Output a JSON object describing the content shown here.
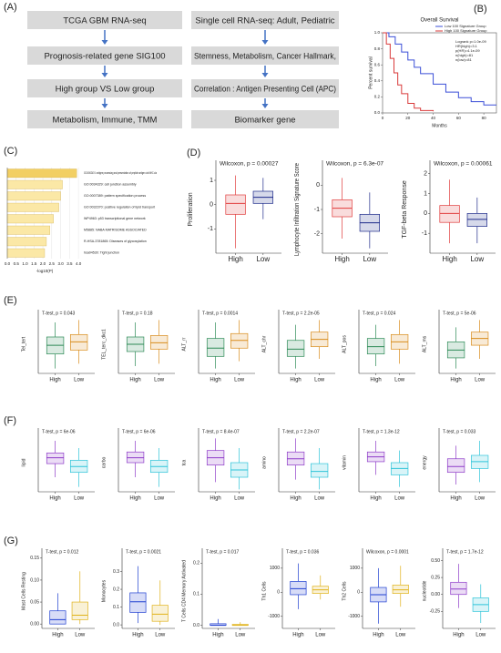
{
  "panel_labels": [
    "(A)",
    "(B)",
    "(C)",
    "(D)",
    "(E)",
    "(F)",
    "(G)"
  ],
  "flow": {
    "left": [
      "TCGA GBM RNA-seq",
      "Prognosis-related gene SIG100",
      "High group VS Low group",
      "Metabolism, Immune, TMM"
    ],
    "right": [
      "Single cell RNA-seq: Adult, Pediatric",
      "Stemness, Metabolism, Cancer Hallmark,",
      "Correlation : Antigen Presenting Cell (APC)",
      "Biomarker gene"
    ]
  },
  "km": {
    "type": "line",
    "title": "Overall Survival",
    "xlabel": "Months",
    "ylabel": "Percent survival",
    "stats": [
      "Logrank p=1.0e-09",
      "HR(high)=3.1",
      "p(HR)=4.1e-09",
      "n(high)=81",
      "n(low)=81"
    ],
    "xlim": [
      0,
      90
    ],
    "xticks": [
      0,
      20,
      40,
      60,
      80
    ],
    "ylim": [
      0,
      1
    ],
    "yticks": [
      {
        "value": 0,
        "label": "0.0"
      },
      {
        "value": 0.2,
        "label": "0.2"
      },
      {
        "value": 0.4,
        "label": "0.4"
      },
      {
        "value": 0.6,
        "label": "0.6"
      },
      {
        "value": 0.8,
        "label": "0.8"
      },
      {
        "value": 1,
        "label": "1.0"
      }
    ],
    "series": [
      {
        "name": "Low 100 Signature Group",
        "color": "#3b4fd8",
        "x": [
          0,
          5,
          10,
          15,
          20,
          25,
          30,
          40,
          50,
          60,
          70,
          80,
          90
        ],
        "values": [
          1,
          0.95,
          0.86,
          0.76,
          0.66,
          0.57,
          0.49,
          0.36,
          0.26,
          0.19,
          0.14,
          0.1,
          0.1
        ]
      },
      {
        "name": "High 100 Signature Group",
        "color": "#d93a3a",
        "x": [
          0,
          3,
          6,
          9,
          12,
          15,
          20,
          25,
          30,
          40
        ],
        "values": [
          1,
          0.86,
          0.68,
          0.5,
          0.35,
          0.24,
          0.12,
          0.06,
          0.03,
          0.02
        ]
      }
    ]
  },
  "enrichment": {
    "type": "bar",
    "xlabel": "-log10(P)",
    "categories": [
      "GO:0002474: antigen processing and presentation of peptide antigen via MHC cla",
      "GO:0034329: cell junction assembly",
      "GO:0007389: pattern specification process",
      "GO:0032370: positive regulation of lipid transport",
      "WP4963: p53 transcriptional gene network",
      "M5885: NABA MATRISOME ASSOCIATED",
      "R-HSA-3781865: Diseases of glycosylation",
      "hsa04530: Tight junction"
    ],
    "values": [
      3.9,
      3.1,
      3.0,
      2.9,
      2.6,
      2.4,
      2.2,
      2.1
    ],
    "colors": [
      "#f2cf63",
      "#fbe8a6",
      "#fbe8a6",
      "#fbe8a6",
      "#fbe8a6",
      "#fbe8a6",
      "#fbe8a6",
      "#fbe8a6"
    ],
    "xlim": [
      0,
      4.2
    ],
    "xticks": [
      {
        "value": 0,
        "label": "0.0"
      },
      {
        "value": 0.5,
        "label": "0.5"
      },
      {
        "value": 1,
        "label": "1.0"
      },
      {
        "value": 1.5,
        "label": "1.5"
      },
      {
        "value": 2,
        "label": "2.0"
      },
      {
        "value": 2.5,
        "label": "2.5"
      },
      {
        "value": 3,
        "label": "3.0"
      },
      {
        "value": 3.5,
        "label": "3.5"
      },
      {
        "value": 4,
        "label": "4.0"
      }
    ]
  },
  "groups": [
    "High",
    "Low"
  ],
  "box_panels": [
    {
      "type": "box",
      "plots": [
        {
          "title": "Wilcoxon, p = 0.00027",
          "ylabel": "Proliferation",
          "colors": [
            "#e03b3b",
            "#1d2a8a"
          ],
          "ylim": [
            -2,
            1.6
          ],
          "yticks": [
            -1,
            0,
            1
          ],
          "stats": [
            {
              "low": -1.8,
              "q1": -0.4,
              "median": 0.05,
              "q3": 0.4,
              "high": 1.2
            },
            {
              "low": -0.6,
              "q1": 0.05,
              "median": 0.3,
              "q3": 0.55,
              "high": 1.1
            }
          ]
        },
        {
          "title": "Wilcoxon, p = 6.3e-07",
          "ylabel": "Lymphocyte Infiltration Signature Score",
          "colors": [
            "#e03b3b",
            "#1d2a8a"
          ],
          "ylim": [
            -2.8,
            0.8
          ],
          "yticks": [
            -2,
            -1,
            0
          ],
          "stats": [
            {
              "low": -2.2,
              "q1": -1.3,
              "median": -0.95,
              "q3": -0.6,
              "high": 0.3
            },
            {
              "low": -2.6,
              "q1": -1.9,
              "median": -1.55,
              "q3": -1.2,
              "high": -0.3
            }
          ]
        },
        {
          "title": "Wilcoxon, p = 0.00061",
          "ylabel": "TGF-beta Response",
          "colors": [
            "#e03b3b",
            "#1d2a8a"
          ],
          "ylim": [
            -2,
            2.4
          ],
          "yticks": [
            -1,
            0,
            1,
            2
          ],
          "stats": [
            {
              "low": -1.5,
              "q1": -0.45,
              "median": 0,
              "q3": 0.4,
              "high": 1.7
            },
            {
              "low": -1.5,
              "q1": -0.65,
              "median": -0.3,
              "q3": 0,
              "high": 0.8
            }
          ]
        }
      ]
    },
    {
      "type": "box",
      "plots": [
        {
          "title": "T-test, p = 0.043",
          "ylabel": "Tel_tert",
          "colors": [
            "#2e8b57",
            "#d98c1c"
          ],
          "ylim": [
            -0.6,
            0.6
          ],
          "stats": [
            {
              "low": -0.5,
              "q1": -0.2,
              "median": -0.02,
              "q3": 0.15,
              "high": 0.45
            },
            {
              "low": -0.4,
              "q1": -0.12,
              "median": 0.05,
              "q3": 0.2,
              "high": 0.5
            }
          ]
        },
        {
          "title": "T-test, p = 0.18",
          "ylabel": "TEL_terc_dkc1",
          "colors": [
            "#2e8b57",
            "#d98c1c"
          ],
          "ylim": [
            -0.6,
            0.6
          ],
          "stats": [
            {
              "low": -0.45,
              "q1": -0.15,
              "median": 0,
              "q3": 0.15,
              "high": 0.45
            },
            {
              "low": -0.4,
              "q1": -0.1,
              "median": 0.03,
              "q3": 0.18,
              "high": 0.5
            }
          ]
        },
        {
          "title": "T-test, p = 0.0014",
          "ylabel": "ALT_rr",
          "colors": [
            "#2e8b57",
            "#d98c1c"
          ],
          "ylim": [
            -0.6,
            0.6
          ],
          "stats": [
            {
              "low": -0.5,
              "q1": -0.25,
              "median": -0.08,
              "q3": 0.12,
              "high": 0.45
            },
            {
              "low": -0.35,
              "q1": -0.08,
              "median": 0.08,
              "q3": 0.22,
              "high": 0.5
            }
          ]
        },
        {
          "title": "T-test, p = 2.2e-05",
          "ylabel": "ALT_chr",
          "colors": [
            "#2e8b57",
            "#d98c1c"
          ],
          "ylim": [
            -0.6,
            0.6
          ],
          "stats": [
            {
              "low": -0.5,
              "q1": -0.25,
              "median": -0.1,
              "q3": 0.08,
              "high": 0.4
            },
            {
              "low": -0.3,
              "q1": -0.05,
              "median": 0.1,
              "q3": 0.25,
              "high": 0.5
            }
          ]
        },
        {
          "title": "T-test, p = 0.024",
          "ylabel": "ALT_pos",
          "colors": [
            "#2e8b57",
            "#d98c1c"
          ],
          "ylim": [
            -0.6,
            0.6
          ],
          "stats": [
            {
              "low": -0.45,
              "q1": -0.2,
              "median": -0.05,
              "q3": 0.12,
              "high": 0.4
            },
            {
              "low": -0.4,
              "q1": -0.1,
              "median": 0.05,
              "q3": 0.2,
              "high": 0.5
            }
          ]
        },
        {
          "title": "T-test, p = 5e-06",
          "ylabel": "ALT_ms",
          "colors": [
            "#2e8b57",
            "#d98c1c"
          ],
          "ylim": [
            -0.6,
            0.6
          ],
          "stats": [
            {
              "low": -0.5,
              "q1": -0.28,
              "median": -0.12,
              "q3": 0.05,
              "high": 0.35
            },
            {
              "low": -0.3,
              "q1": -0.02,
              "median": 0.12,
              "q3": 0.25,
              "high": 0.5
            }
          ]
        }
      ]
    },
    {
      "type": "box",
      "plots": [
        {
          "title": "T-test, p = 6e-06",
          "ylabel": "lipid",
          "colors": [
            "#8e3bc9",
            "#2ec4d9"
          ],
          "ylim": [
            -0.6,
            0.6
          ],
          "stats": [
            {
              "low": -0.3,
              "q1": -0.02,
              "median": 0.1,
              "q3": 0.2,
              "high": 0.45
            },
            {
              "low": -0.5,
              "q1": -0.2,
              "median": -0.08,
              "q3": 0.05,
              "high": 0.3
            }
          ]
        },
        {
          "title": "T-test, p = 6e-06",
          "ylabel": "carbo",
          "colors": [
            "#8e3bc9",
            "#2ec4d9"
          ],
          "ylim": [
            -0.6,
            0.6
          ],
          "stats": [
            {
              "low": -0.3,
              "q1": 0,
              "median": 0.1,
              "q3": 0.22,
              "high": 0.45
            },
            {
              "low": -0.5,
              "q1": -0.2,
              "median": -0.08,
              "q3": 0.05,
              "high": 0.3
            }
          ]
        },
        {
          "title": "T-test, p = 8.4e-07",
          "ylabel": "tca",
          "colors": [
            "#8e3bc9",
            "#2ec4d9"
          ],
          "ylim": [
            -0.6,
            0.6
          ],
          "stats": [
            {
              "low": -0.4,
              "q1": -0.05,
              "median": 0.1,
              "q3": 0.25,
              "high": 0.5
            },
            {
              "low": -0.55,
              "q1": -0.3,
              "median": -0.15,
              "q3": 0,
              "high": 0.3
            }
          ]
        },
        {
          "title": "T-test, p = 2.2e-07",
          "ylabel": "amino",
          "colors": [
            "#8e3bc9",
            "#2ec4d9"
          ],
          "ylim": [
            -0.6,
            0.6
          ],
          "stats": [
            {
              "low": -0.35,
              "q1": -0.05,
              "median": 0.08,
              "q3": 0.22,
              "high": 0.5
            },
            {
              "low": -0.55,
              "q1": -0.3,
              "median": -0.18,
              "q3": -0.02,
              "high": 0.3
            }
          ]
        },
        {
          "title": "T-test, p = 1.3e-12",
          "ylabel": "vitamin",
          "colors": [
            "#8e3bc9",
            "#2ec4d9"
          ],
          "ylim": [
            -0.6,
            0.6
          ],
          "stats": [
            {
              "low": -0.25,
              "q1": 0.02,
              "median": 0.12,
              "q3": 0.22,
              "high": 0.45
            },
            {
              "low": -0.5,
              "q1": -0.25,
              "median": -0.12,
              "q3": 0,
              "high": 0.25
            }
          ]
        },
        {
          "title": "T-test, p = 0.033",
          "ylabel": "energy",
          "colors": [
            "#8e3bc9",
            "#2ec4d9"
          ],
          "ylim": [
            -0.6,
            0.6
          ],
          "stats": [
            {
              "low": -0.45,
              "q1": -0.2,
              "median": -0.08,
              "q3": 0.08,
              "high": 0.35
            },
            {
              "low": -0.4,
              "q1": -0.12,
              "median": 0.02,
              "q3": 0.15,
              "high": 0.45
            }
          ]
        }
      ]
    },
    {
      "type": "box",
      "plots": [
        {
          "title": "T-test, p = 0.012",
          "ylabel": "Mast Cells Resting",
          "colors": [
            "#1f3fd1",
            "#e0b31b"
          ],
          "ylim": [
            -0.01,
            0.16
          ],
          "yticks": [
            {
              "value": 0,
              "label": "0.00"
            },
            {
              "value": 0.05,
              "label": "0.05"
            },
            {
              "value": 0.1,
              "label": "0.10"
            },
            {
              "value": 0.15,
              "label": "0.15"
            }
          ],
          "stats": [
            {
              "low": 0,
              "q1": 0,
              "median": 0.01,
              "q3": 0.03,
              "high": 0.07
            },
            {
              "low": 0,
              "q1": 0.01,
              "median": 0.02,
              "q3": 0.05,
              "high": 0.12
            }
          ]
        },
        {
          "title": "T-test, p = 0.0021",
          "ylabel": "Monocytes",
          "colors": [
            "#1f3fd1",
            "#e0b31b"
          ],
          "ylim": [
            -0.02,
            0.4
          ],
          "yticks": [
            {
              "value": 0,
              "label": "0.0"
            },
            {
              "value": 0.1,
              "label": "0.1"
            },
            {
              "value": 0.2,
              "label": "0.2"
            },
            {
              "value": 0.3,
              "label": "0.3"
            }
          ],
          "stats": [
            {
              "low": 0.01,
              "q1": 0.07,
              "median": 0.13,
              "q3": 0.18,
              "high": 0.33
            },
            {
              "low": 0,
              "q1": 0.02,
              "median": 0.06,
              "q3": 0.11,
              "high": 0.25
            }
          ]
        },
        {
          "title": "T-test, p = 0.017",
          "ylabel": "T Cells CD4 Memory Activated",
          "colors": [
            "#1f3fd1",
            "#e0b31b"
          ],
          "ylim": [
            -0.01,
            0.23
          ],
          "yticks": [
            {
              "value": 0,
              "label": "0.0"
            },
            {
              "value": 0.1,
              "label": "0.1"
            },
            {
              "value": 0.2,
              "label": "0.2"
            }
          ],
          "stats": [
            {
              "low": 0,
              "q1": 0,
              "median": 0,
              "q3": 0.005,
              "high": 0.02
            },
            {
              "low": 0,
              "q1": 0,
              "median": 0,
              "q3": 0.003,
              "high": 0.01
            }
          ]
        },
        {
          "title": "T-test, p = 0.036",
          "ylabel": "Th1 Cells",
          "colors": [
            "#1f3fd1",
            "#e0b31b"
          ],
          "ylim": [
            -1500,
            1600
          ],
          "yticks": [
            -1000,
            0,
            1000
          ],
          "stats": [
            {
              "low": -700,
              "q1": -100,
              "median": 150,
              "q3": 450,
              "high": 1200
            },
            {
              "low": -300,
              "q1": -50,
              "median": 100,
              "q3": 250,
              "high": 700
            }
          ]
        },
        {
          "title": "Wilcoxon, p = 0.0001",
          "ylabel": "Th2 Cells",
          "colors": [
            "#1f3fd1",
            "#e0b31b"
          ],
          "ylim": [
            -1500,
            1600
          ],
          "yticks": [
            -1000,
            0,
            1000
          ],
          "stats": [
            {
              "low": -1300,
              "q1": -400,
              "median": -100,
              "q3": 200,
              "high": 1000
            },
            {
              "low": -600,
              "q1": -50,
              "median": 100,
              "q3": 300,
              "high": 1100
            }
          ]
        },
        {
          "title": "T-test, p = 1.7e-12",
          "ylabel": "nucleotide",
          "colors": [
            "#8e3bc9",
            "#2ec4d9"
          ],
          "ylim": [
            -0.5,
            0.6
          ],
          "yticks": [
            {
              "value": -0.25,
              "label": "-0.25"
            },
            {
              "value": 0,
              "label": "0.00"
            },
            {
              "value": 0.25,
              "label": "0.25"
            },
            {
              "value": 0.5,
              "label": "0.50"
            }
          ],
          "stats": [
            {
              "low": -0.2,
              "q1": 0,
              "median": 0.08,
              "q3": 0.18,
              "high": 0.45
            },
            {
              "low": -0.42,
              "q1": -0.25,
              "median": -0.15,
              "q3": -0.05,
              "high": 0.15
            }
          ]
        }
      ]
    }
  ]
}
